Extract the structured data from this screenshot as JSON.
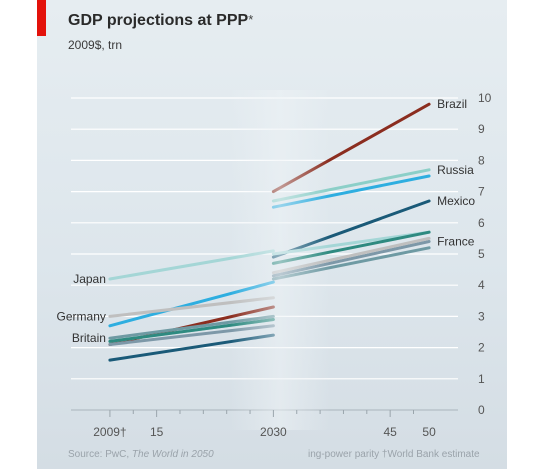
{
  "title": "GDP projections at PPP",
  "title_mark": "*",
  "subtitle": "2009$, trn",
  "source_label": "Source: PwC, ",
  "source_title": "The World in 2050",
  "footnote": "ing-power parity  †World Bank estimate",
  "chart_data": {
    "type": "line",
    "title": "GDP projections at PPP*",
    "subtitle": "2009$, trn",
    "x_tick_labels": [
      "2009†",
      "15",
      "2030",
      "45",
      "50"
    ],
    "x_tick_values": [
      2009,
      2015,
      2030,
      2045,
      2050
    ],
    "xlim": [
      2004,
      2055
    ],
    "ylim": [
      0,
      10
    ],
    "y_ticks": [
      0,
      1,
      2,
      3,
      4,
      5,
      6,
      7,
      8,
      9,
      10
    ],
    "y_tick_labels": [
      "0",
      "1",
      "2",
      "3",
      "4",
      "5",
      "6",
      "7",
      "8",
      "9",
      "10"
    ],
    "y_axis_side": "right",
    "grid": true,
    "break_at": 2030,
    "series": [
      {
        "name": "Brazil",
        "color": "#8b2d1f",
        "label_side": "right",
        "segments": [
          [
            [
              2009,
              2.1
            ],
            [
              2030,
              3.3
            ]
          ],
          [
            [
              2030,
              7.0
            ],
            [
              2050,
              9.8
            ]
          ]
        ]
      },
      {
        "name": "Russia",
        "color": "#8ccfc8",
        "label_side": "right",
        "segments": [
          [
            [
              2009,
              2.2
            ],
            [
              2030,
              2.9
            ]
          ],
          [
            [
              2030,
              6.7
            ],
            [
              2050,
              7.7
            ]
          ]
        ]
      },
      {
        "name": "",
        "color": "#2eaee0",
        "label_side": "none",
        "segments": [
          [
            [
              2009,
              2.7
            ],
            [
              2030,
              4.1
            ]
          ],
          [
            [
              2030,
              6.5
            ],
            [
              2050,
              7.5
            ]
          ]
        ]
      },
      {
        "name": "Mexico",
        "color": "#1a5a78",
        "label_side": "right",
        "segments": [
          [
            [
              2009,
              1.6
            ],
            [
              2030,
              2.4
            ]
          ],
          [
            [
              2030,
              4.9
            ],
            [
              2050,
              6.7
            ]
          ]
        ]
      },
      {
        "name": "Japan",
        "color": "#a4d6d6",
        "label_side": "left",
        "segments": [
          [
            [
              2009,
              4.2
            ],
            [
              2030,
              5.1
            ]
          ],
          [
            [
              2030,
              5.0
            ],
            [
              2050,
              5.7
            ]
          ]
        ]
      },
      {
        "name": "",
        "color": "#2e8a80",
        "label_side": "none",
        "segments": [
          [
            [
              2009,
              2.2
            ],
            [
              2030,
              2.9
            ]
          ],
          [
            [
              2030,
              4.7
            ],
            [
              2050,
              5.7
            ]
          ]
        ]
      },
      {
        "name": "France",
        "color": "#7d98a8",
        "label_side": "right",
        "segments": [
          [
            [
              2009,
              2.1
            ],
            [
              2030,
              2.7
            ]
          ],
          [
            [
              2030,
              4.3
            ],
            [
              2050,
              5.4
            ]
          ]
        ]
      },
      {
        "name": "Germany",
        "color": "#bfbfbf",
        "label_side": "left",
        "segments": [
          [
            [
              2009,
              3.0
            ],
            [
              2030,
              3.6
            ]
          ],
          [
            [
              2030,
              4.4
            ],
            [
              2050,
              5.5
            ]
          ]
        ]
      },
      {
        "name": "Britain",
        "color": "#6e9aa3",
        "label_side": "left",
        "segments": [
          [
            [
              2009,
              2.3
            ],
            [
              2030,
              3.0
            ]
          ],
          [
            [
              2030,
              4.2
            ],
            [
              2050,
              5.2
            ]
          ]
        ]
      }
    ]
  }
}
